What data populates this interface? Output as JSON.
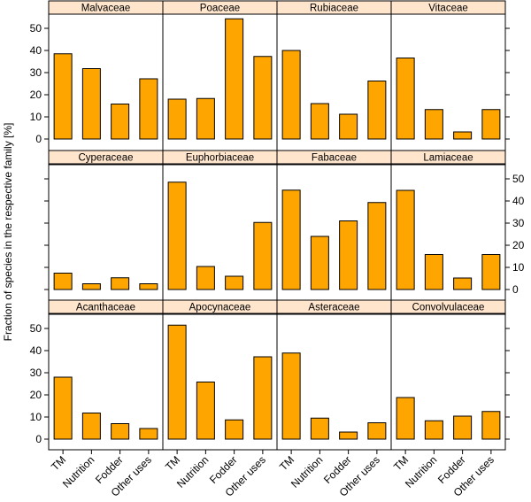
{
  "chart_data": {
    "type": "bar",
    "layout": "lattice 4 columns x 3 rows",
    "ylabel": "Fraction of species in the respective family [%]",
    "xlabel": "",
    "categories": [
      "TM",
      "Nutrition",
      "Fodder",
      "Other uses"
    ],
    "ylim": [
      0,
      57
    ],
    "yticks": [
      0,
      10,
      20,
      30,
      40,
      50
    ],
    "bar_color": "#FFA500",
    "strip_color": "#FFE5CC",
    "panels": [
      {
        "name": "Malvaceae",
        "values": [
          38.5,
          31.8,
          15.8,
          27.2
        ]
      },
      {
        "name": "Poaceae",
        "values": [
          18.0,
          18.3,
          54.3,
          37.3
        ]
      },
      {
        "name": "Rubiaceae",
        "values": [
          40.0,
          16.0,
          11.2,
          26.2
        ]
      },
      {
        "name": "Vitaceae",
        "values": [
          36.6,
          13.3,
          3.2,
          13.3
        ]
      },
      {
        "name": "Cyperaceae",
        "values": [
          7.4,
          2.6,
          5.3,
          2.6
        ]
      },
      {
        "name": "Euphorbiaceae",
        "values": [
          48.5,
          10.4,
          6.0,
          30.3
        ]
      },
      {
        "name": "Fabaceae",
        "values": [
          44.9,
          24.0,
          31.0,
          39.3
        ]
      },
      {
        "name": "Lamiaceae",
        "values": [
          44.8,
          15.8,
          5.2,
          15.8
        ]
      },
      {
        "name": "Acanthaceae",
        "values": [
          28.0,
          11.8,
          7.0,
          4.8
        ]
      },
      {
        "name": "Apocynaceae",
        "values": [
          51.5,
          25.8,
          8.7,
          37.2
        ]
      },
      {
        "name": "Asteraceae",
        "values": [
          38.9,
          9.5,
          3.2,
          7.4
        ]
      },
      {
        "name": "Convolvulaceae",
        "values": [
          18.8,
          8.3,
          10.4,
          12.5
        ]
      }
    ]
  }
}
